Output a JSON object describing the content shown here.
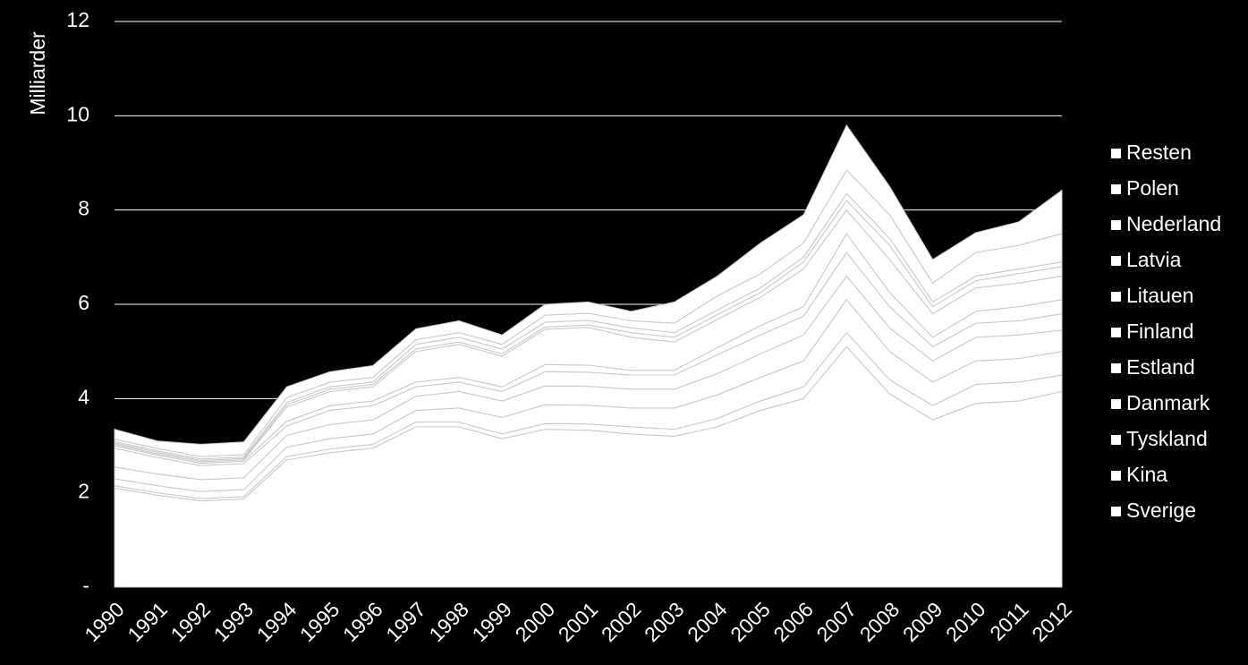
{
  "chart_data": {
    "type": "stacked-area",
    "y_label": "Milliarder",
    "categories": [
      "1990",
      "1991",
      "1992",
      "1993",
      "1994",
      "1995",
      "1996",
      "1997",
      "1998",
      "1999",
      "2000",
      "2001",
      "2002",
      "2003",
      "2004",
      "2005",
      "2006",
      "2007",
      "2008",
      "2009",
      "2010",
      "2011",
      "2012"
    ],
    "ylim": [
      0,
      12
    ],
    "yticks": [
      {
        "value": 0,
        "label": "-"
      },
      2,
      4,
      6,
      8,
      10,
      12
    ],
    "grid": true,
    "legend": "right",
    "series": [
      {
        "name": "Sverige",
        "color": "#ffffff",
        "values": [
          2.1,
          1.95,
          1.83,
          1.87,
          2.7,
          2.85,
          2.95,
          3.4,
          3.4,
          3.15,
          3.35,
          3.33,
          3.25,
          3.2,
          3.4,
          3.75,
          4.0,
          5.1,
          4.1,
          3.55,
          3.9,
          3.95,
          4.15
        ]
      },
      {
        "name": "Kina",
        "color": "#ffffff",
        "values": [
          0.05,
          0.05,
          0.05,
          0.05,
          0.07,
          0.08,
          0.08,
          0.1,
          0.1,
          0.1,
          0.12,
          0.13,
          0.15,
          0.15,
          0.18,
          0.2,
          0.25,
          0.3,
          0.3,
          0.3,
          0.4,
          0.4,
          0.35
        ]
      },
      {
        "name": "Tyskland",
        "color": "#ffffff",
        "values": [
          0.15,
          0.15,
          0.15,
          0.15,
          0.2,
          0.22,
          0.22,
          0.25,
          0.3,
          0.35,
          0.4,
          0.4,
          0.4,
          0.45,
          0.5,
          0.5,
          0.55,
          0.7,
          0.6,
          0.5,
          0.5,
          0.5,
          0.5
        ]
      },
      {
        "name": "Danmark",
        "color": "#ffffff",
        "values": [
          0.25,
          0.25,
          0.25,
          0.25,
          0.25,
          0.3,
          0.3,
          0.3,
          0.35,
          0.35,
          0.4,
          0.4,
          0.4,
          0.4,
          0.45,
          0.5,
          0.55,
          0.5,
          0.5,
          0.45,
          0.5,
          0.5,
          0.45
        ]
      },
      {
        "name": "Estland",
        "color": "#ffffff",
        "values": [
          0.4,
          0.35,
          0.3,
          0.3,
          0.2,
          0.3,
          0.3,
          0.2,
          0.2,
          0.2,
          0.3,
          0.3,
          0.3,
          0.3,
          0.4,
          0.4,
          0.4,
          0.5,
          0.45,
          0.3,
          0.3,
          0.3,
          0.35
        ]
      },
      {
        "name": "Finland",
        "color": "#ffffff",
        "values": [
          0.05,
          0.05,
          0.05,
          0.05,
          0.1,
          0.1,
          0.1,
          0.1,
          0.1,
          0.1,
          0.15,
          0.15,
          0.1,
          0.1,
          0.15,
          0.2,
          0.2,
          0.4,
          0.3,
          0.2,
          0.25,
          0.3,
          0.3
        ]
      },
      {
        "name": "Litauen",
        "color": "#ffffff",
        "values": [
          0.03,
          0.03,
          0.03,
          0.03,
          0.3,
          0.3,
          0.3,
          0.65,
          0.7,
          0.65,
          0.75,
          0.8,
          0.7,
          0.6,
          0.6,
          0.6,
          0.8,
          0.5,
          0.7,
          0.5,
          0.5,
          0.5,
          0.5
        ]
      },
      {
        "name": "Latvia",
        "color": "#ffffff",
        "values": [
          0.03,
          0.03,
          0.03,
          0.03,
          0.05,
          0.05,
          0.05,
          0.05,
          0.05,
          0.05,
          0.05,
          0.05,
          0.1,
          0.1,
          0.1,
          0.1,
          0.15,
          0.2,
          0.3,
          0.15,
          0.15,
          0.2,
          0.2
        ]
      },
      {
        "name": "Nederland",
        "color": "#ffffff",
        "values": [
          0.03,
          0.03,
          0.03,
          0.03,
          0.05,
          0.05,
          0.05,
          0.1,
          0.1,
          0.1,
          0.1,
          0.1,
          0.1,
          0.1,
          0.1,
          0.1,
          0.1,
          0.15,
          0.15,
          0.1,
          0.1,
          0.1,
          0.1
        ]
      },
      {
        "name": "Polen",
        "color": "#ffffff",
        "values": [
          0.05,
          0.05,
          0.05,
          0.05,
          0.1,
          0.1,
          0.1,
          0.1,
          0.1,
          0.1,
          0.15,
          0.15,
          0.15,
          0.2,
          0.3,
          0.3,
          0.3,
          0.5,
          0.5,
          0.4,
          0.5,
          0.5,
          0.6
        ]
      },
      {
        "name": "Resten",
        "color": "#ffffff",
        "values": [
          0.21,
          0.16,
          0.26,
          0.27,
          0.23,
          0.22,
          0.25,
          0.23,
          0.25,
          0.2,
          0.23,
          0.24,
          0.2,
          0.45,
          0.42,
          0.65,
          0.6,
          0.95,
          0.6,
          0.5,
          0.42,
          0.5,
          0.92
        ]
      }
    ]
  }
}
